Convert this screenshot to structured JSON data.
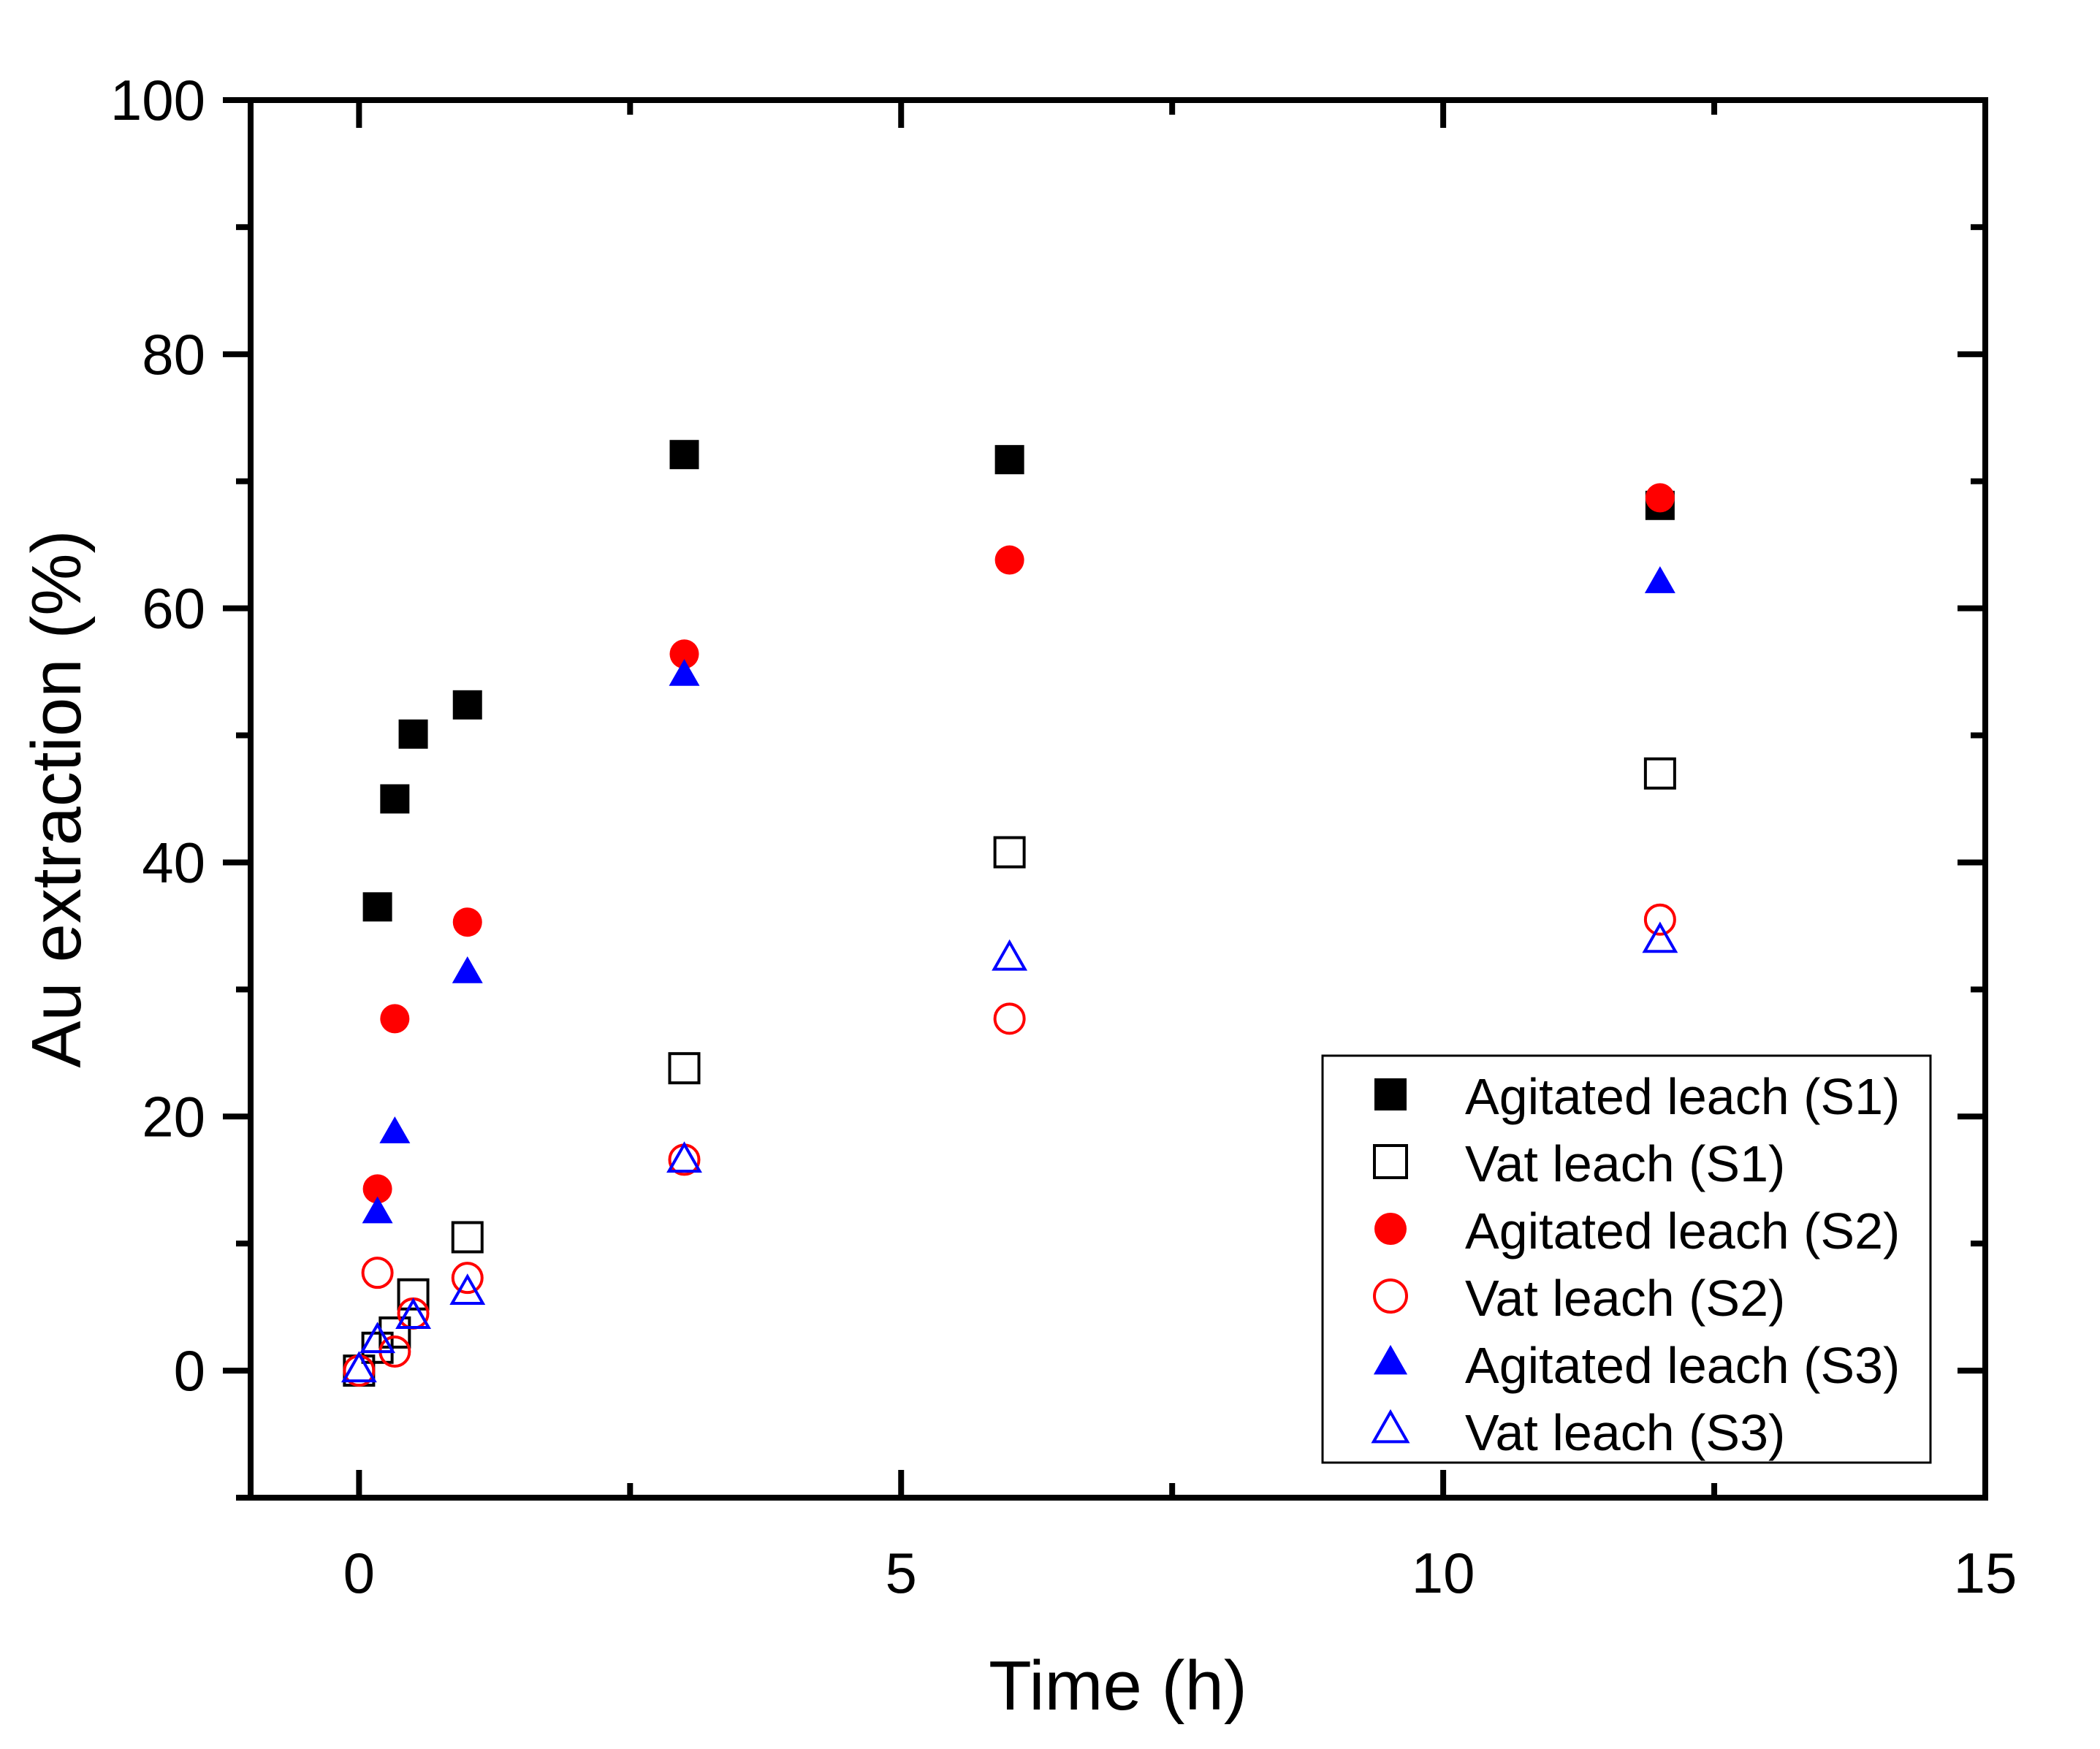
{
  "chart_data": {
    "type": "scatter",
    "title": "",
    "xlabel": "Time (h)",
    "ylabel": "Au extraction (%)",
    "xlim": [
      -1,
      15
    ],
    "ylim": [
      -10,
      100
    ],
    "xticks": [
      0,
      5,
      10,
      15
    ],
    "yticks": [
      0,
      20,
      40,
      60,
      80,
      100
    ],
    "grid": false,
    "legend_position": "bottom-right",
    "series": [
      {
        "name": "Agitated leach (S1)",
        "marker": "square",
        "filled": true,
        "color": "#000000",
        "x": [
          0.17,
          0.33,
          0.5,
          1,
          3,
          6,
          12
        ],
        "y": [
          36.5,
          45,
          50.1,
          52.4,
          72.1,
          71.7,
          68.1
        ]
      },
      {
        "name": "Vat leach (S1)",
        "marker": "square",
        "filled": false,
        "color": "#000000",
        "x": [
          0,
          0.17,
          0.33,
          0.5,
          1,
          3,
          6,
          12
        ],
        "y": [
          0,
          1.8,
          3,
          6,
          10.5,
          23.8,
          40.8,
          47
        ]
      },
      {
        "name": "Agitated leach (S2)",
        "marker": "circle",
        "filled": true,
        "color": "#ff0000",
        "x": [
          0.17,
          0.33,
          1,
          3,
          6,
          12
        ],
        "y": [
          14.3,
          27.7,
          35.3,
          56.4,
          63.8,
          68.7
        ]
      },
      {
        "name": "Vat leach (S2)",
        "marker": "circle",
        "filled": false,
        "color": "#ff0000",
        "x": [
          0,
          0.17,
          0.33,
          0.5,
          1,
          3,
          6,
          12
        ],
        "y": [
          0,
          7.7,
          1.5,
          4.5,
          7.3,
          16.6,
          27.7,
          35.5
        ]
      },
      {
        "name": "Agitated leach (S3)",
        "marker": "triangle",
        "filled": true,
        "color": "#0000ff",
        "x": [
          0.17,
          0.33,
          1,
          3,
          12
        ],
        "y": [
          12.4,
          18.7,
          31.3,
          54.7,
          62
        ]
      },
      {
        "name": "Vat leach (S3)",
        "marker": "triangle",
        "filled": false,
        "color": "#0000ff",
        "x": [
          0,
          0.17,
          0.5,
          1,
          3,
          6,
          12
        ],
        "y": [
          0,
          2.3,
          4.2,
          6.1,
          16.5,
          32.4,
          33.8
        ]
      }
    ]
  }
}
